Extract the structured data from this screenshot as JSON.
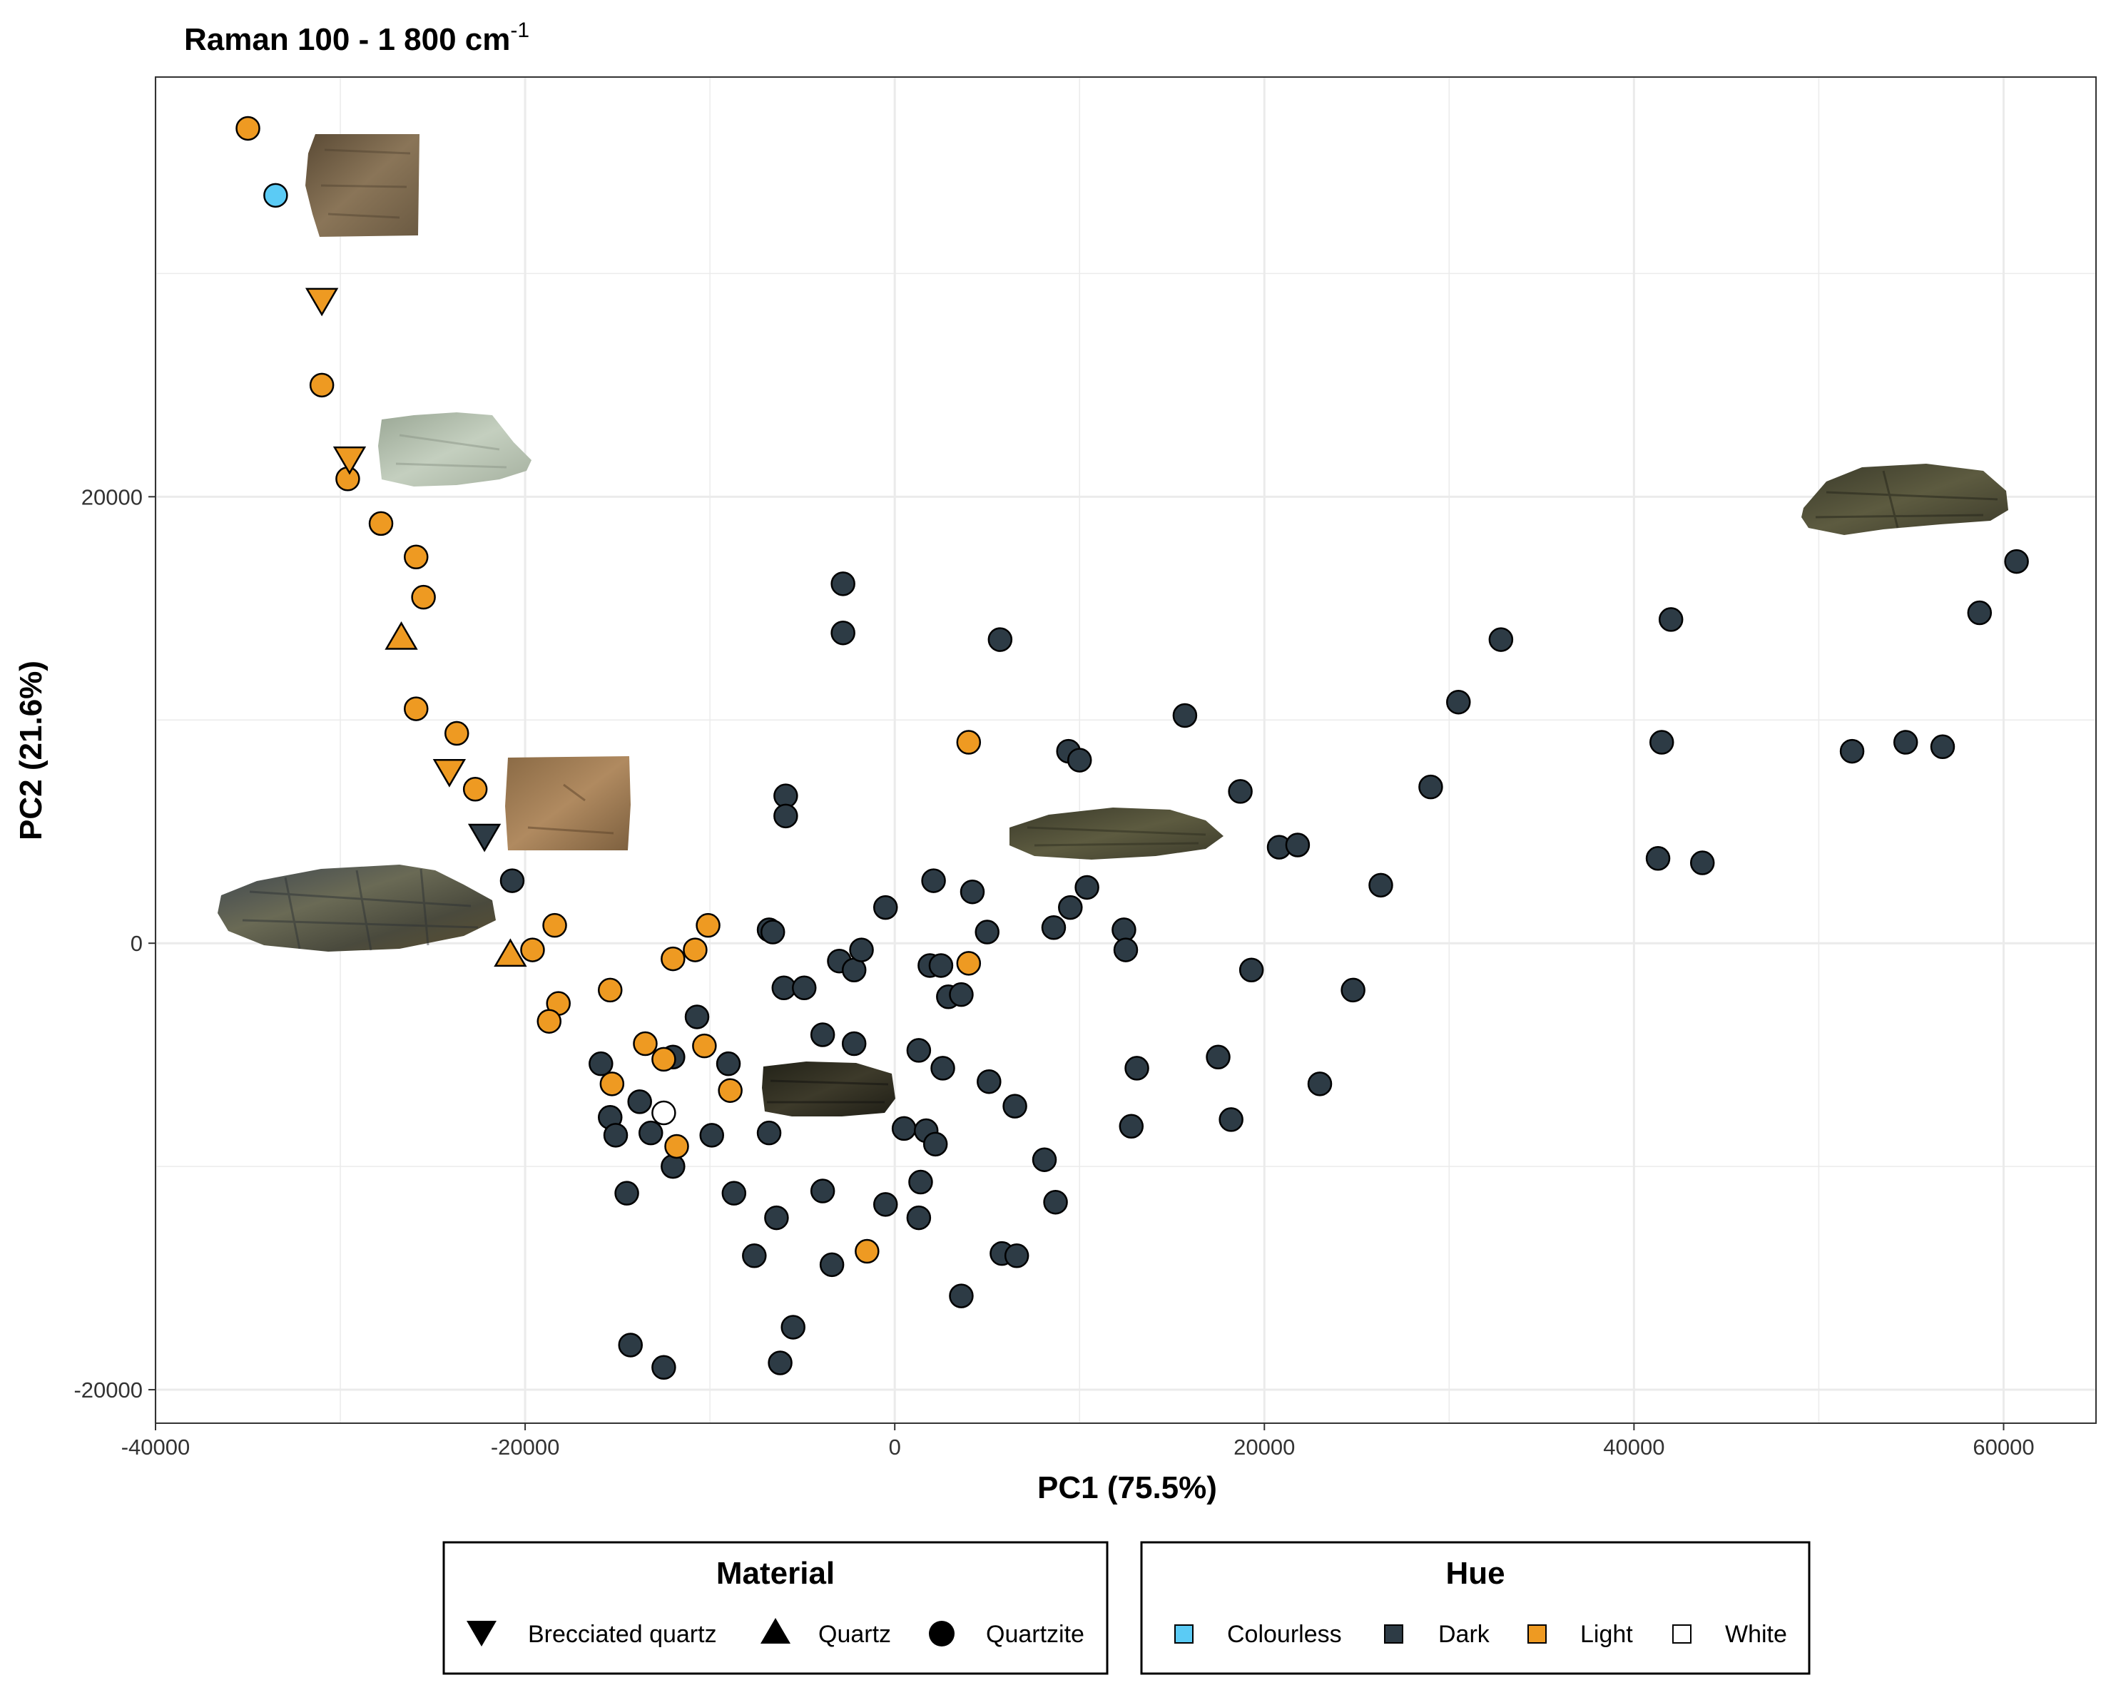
{
  "chart_data": {
    "type": "scatter",
    "title": "Raman 100 - 1 800  cm",
    "title_superscript": "-1",
    "xlabel": "PC1 (75.5%)",
    "ylabel": "PC2 (21.6%)",
    "xlim": [
      -40000,
      65000
    ],
    "ylim": [
      -21500,
      38800
    ],
    "x_ticks": [
      -40000,
      -20000,
      0,
      20000,
      40000,
      60000
    ],
    "x_tick_labels": [
      "-40000",
      "-20000",
      "0",
      "20000",
      "40000",
      "60000"
    ],
    "y_ticks": [
      -20000,
      0,
      20000
    ],
    "y_tick_labels": [
      "-20000",
      "0",
      "20000"
    ],
    "grid": true,
    "colors": {
      "Colourless": "#5bcbf5",
      "Dark": "#2d3b45",
      "Light": "#ee9a22",
      "White": "#ffffff"
    },
    "legends": [
      {
        "title": "Material",
        "entries": [
          {
            "label": "Brecciated quartz",
            "shape": "triangle-down"
          },
          {
            "label": "Quartz",
            "shape": "triangle-up"
          },
          {
            "label": "Quartzite",
            "shape": "circle"
          }
        ]
      },
      {
        "title": "Hue",
        "entries": [
          {
            "label": "Colourless",
            "color": "#5bcbf5"
          },
          {
            "label": "Dark",
            "color": "#2d3b45"
          },
          {
            "label": "Light",
            "color": "#ee9a22"
          },
          {
            "label": "White",
            "color": "#ffffff"
          }
        ]
      }
    ],
    "series": [
      {
        "material": "Quartzite",
        "hue": "Light",
        "points": [
          [
            -35000,
            36500
          ],
          [
            -31000,
            25000
          ],
          [
            -29600,
            20800
          ],
          [
            -27800,
            18800
          ],
          [
            -25900,
            17300
          ],
          [
            -25500,
            15500
          ],
          [
            -25900,
            10500
          ],
          [
            -23700,
            9400
          ],
          [
            -22700,
            6900
          ],
          [
            -18400,
            800
          ],
          [
            -19600,
            -300
          ],
          [
            -18200,
            -2700
          ],
          [
            -18700,
            -3500
          ],
          [
            -15400,
            -2100
          ],
          [
            -15300,
            -6300
          ],
          [
            -13500,
            -4500
          ],
          [
            -12500,
            -5200
          ],
          [
            -12000,
            -700
          ],
          [
            -10800,
            -300
          ],
          [
            -10100,
            800
          ],
          [
            -10300,
            -4600
          ],
          [
            -11800,
            -9100
          ],
          [
            -8900,
            -6600
          ],
          [
            -1500,
            -13800
          ],
          [
            4000,
            9000
          ],
          [
            4000,
            -900
          ]
        ]
      },
      {
        "material": "Quartzite",
        "hue": "Colourless",
        "points": [
          [
            -33500,
            33500
          ]
        ]
      },
      {
        "material": "Quartzite",
        "hue": "White",
        "points": [
          [
            -12500,
            -7600
          ]
        ]
      },
      {
        "material": "Brecciated quartz",
        "hue": "Light",
        "points": [
          [
            -31000,
            28800
          ],
          [
            -29500,
            21700
          ],
          [
            -24100,
            7700
          ]
        ]
      },
      {
        "material": "Brecciated quartz",
        "hue": "Dark",
        "points": [
          [
            -22200,
            4800
          ]
        ]
      },
      {
        "material": "Quartz",
        "hue": "Light",
        "points": [
          [
            -26700,
            13700
          ],
          [
            -20800,
            -500
          ]
        ]
      },
      {
        "material": "Quartzite",
        "hue": "Dark",
        "points": [
          [
            -20700,
            2800
          ],
          [
            -15900,
            -5400
          ],
          [
            -15400,
            -7800
          ],
          [
            -15100,
            -8600
          ],
          [
            -14500,
            -11200
          ],
          [
            -13800,
            -7100
          ],
          [
            -13200,
            -8500
          ],
          [
            -12000,
            -5100
          ],
          [
            -12000,
            -10000
          ],
          [
            -14300,
            -18000
          ],
          [
            -12500,
            -19000
          ],
          [
            -10700,
            -3300
          ],
          [
            -9900,
            -8600
          ],
          [
            -9000,
            -5400
          ],
          [
            -8700,
            -11200
          ],
          [
            -7600,
            -14000
          ],
          [
            -6800,
            600
          ],
          [
            -6600,
            500
          ],
          [
            -6800,
            -8500
          ],
          [
            -6400,
            -12300
          ],
          [
            -5900,
            6600
          ],
          [
            -5900,
            5700
          ],
          [
            -6000,
            -2000
          ],
          [
            -4900,
            -2000
          ],
          [
            -5500,
            -17200
          ],
          [
            -6200,
            -18800
          ],
          [
            -3900,
            -4100
          ],
          [
            -3900,
            -11100
          ],
          [
            -3400,
            -14400
          ],
          [
            -2800,
            16100
          ],
          [
            -2800,
            13900
          ],
          [
            -3000,
            -800
          ],
          [
            -2200,
            -1200
          ],
          [
            -1800,
            -300
          ],
          [
            -2200,
            -4500
          ],
          [
            -500,
            1600
          ],
          [
            -500,
            -11700
          ],
          [
            500,
            -8300
          ],
          [
            1300,
            -4800
          ],
          [
            1400,
            -10700
          ],
          [
            1300,
            -12300
          ],
          [
            1700,
            -8400
          ],
          [
            2100,
            2800
          ],
          [
            1900,
            -1000
          ],
          [
            2200,
            -9000
          ],
          [
            2600,
            -5600
          ],
          [
            2500,
            -1000
          ],
          [
            2900,
            -2400
          ],
          [
            3600,
            -2300
          ],
          [
            4200,
            2300
          ],
          [
            3600,
            -15800
          ],
          [
            5000,
            500
          ],
          [
            5100,
            -6200
          ],
          [
            5700,
            13600
          ],
          [
            5800,
            -13900
          ],
          [
            6500,
            -7300
          ],
          [
            6600,
            -14000
          ],
          [
            8100,
            -9700
          ],
          [
            8600,
            700
          ],
          [
            8700,
            -11600
          ],
          [
            9400,
            8600
          ],
          [
            9500,
            1600
          ],
          [
            10000,
            8200
          ],
          [
            10400,
            2500
          ],
          [
            12400,
            600
          ],
          [
            12500,
            -300
          ],
          [
            12800,
            -8200
          ],
          [
            13100,
            -5600
          ],
          [
            15700,
            10200
          ],
          [
            17500,
            -5100
          ],
          [
            18200,
            -7900
          ],
          [
            18700,
            6800
          ],
          [
            19300,
            -1200
          ],
          [
            20800,
            4300
          ],
          [
            21800,
            4400
          ],
          [
            23000,
            -6300
          ],
          [
            24800,
            -2100
          ],
          [
            26300,
            2600
          ],
          [
            29000,
            7000
          ],
          [
            30500,
            10800
          ],
          [
            32800,
            13600
          ],
          [
            41300,
            3800
          ],
          [
            41500,
            9000
          ],
          [
            42000,
            14500
          ],
          [
            43700,
            3600
          ],
          [
            51800,
            8600
          ],
          [
            54700,
            9000
          ],
          [
            56700,
            8800
          ],
          [
            58700,
            14800
          ],
          [
            60700,
            17100
          ]
        ]
      }
    ]
  }
}
